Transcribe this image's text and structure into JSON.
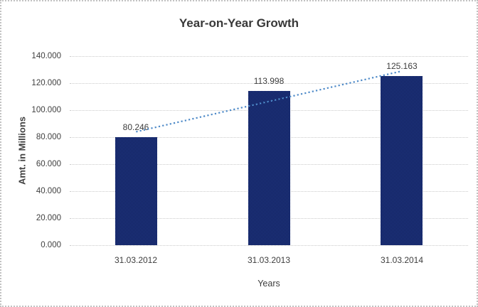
{
  "window": {
    "background_color": "#ffffff",
    "border_color": "#c2c2c2"
  },
  "chart_data": {
    "type": "bar",
    "title": "Year-on-Year Growth",
    "xlabel": "Years",
    "ylabel": "Amt. in Millions",
    "categories": [
      "31.03.2012",
      "31.03.2013",
      "31.03.2014"
    ],
    "values": [
      80.246,
      113.998,
      125.163
    ],
    "data_labels": [
      "80.246",
      "113.998",
      "125.163"
    ],
    "ylim": [
      0,
      140
    ],
    "ytick_step": 20,
    "ytick_labels": [
      "0.000",
      "20.000",
      "40.000",
      "60.000",
      "80.000",
      "100.000",
      "120.000",
      "140.000"
    ],
    "grid": "horizontal-dotted",
    "legend": "none",
    "bar_color": "#16266e",
    "bar_pattern_colors": [
      "#2747a6",
      "#0a1038"
    ],
    "grid_color": "#cbcbcb",
    "text_color": "#3d3d3d",
    "trendline": {
      "type": "linear",
      "style": "dotted",
      "color": "#4e8ac8",
      "start_value": 84.0,
      "end_value": 128.9
    }
  }
}
